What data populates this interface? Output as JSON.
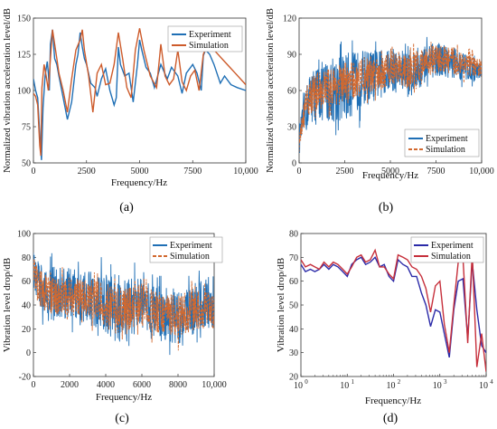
{
  "panels": [
    {
      "id": "a",
      "caption": "(a)",
      "xlabel": "Frequency/Hz",
      "ylabel": "Normalized vibration acceleration level/dB",
      "legend": [
        "Experiment",
        "Simulation"
      ]
    },
    {
      "id": "b",
      "caption": "(b)",
      "xlabel": "Frequency/Hz",
      "ylabel": "Normalized vibration acceleration level/dB",
      "legend": [
        "Experiment",
        "Simulation"
      ]
    },
    {
      "id": "c",
      "caption": "(c)",
      "xlabel": "Frequency/Hz",
      "ylabel": "Vibration level drop/dB",
      "legend": [
        "Experiment",
        "Simulation"
      ]
    },
    {
      "id": "d",
      "caption": "(d)",
      "xlabel": "Frequency/Hz",
      "ylabel": "Vibration level drop/dB",
      "legend": [
        "Experiment",
        "Simulation"
      ]
    }
  ],
  "colors": {
    "a_exp": "#1f6fb5",
    "a_sim": "#cd5b2b",
    "b_exp": "#1f6fb5",
    "b_sim": "#d2692f",
    "c_exp": "#1f6fb5",
    "c_sim": "#d2692f",
    "d_exp": "#2b2aa8",
    "d_sim": "#c62f3b"
  },
  "chart_data": [
    {
      "panel": "a",
      "type": "line",
      "xlim": [
        0,
        10000
      ],
      "ylim": [
        50,
        150
      ],
      "xticks": [
        0,
        2500,
        5000,
        7500,
        10000
      ],
      "xtick_labels": [
        "0",
        "2500",
        "5000",
        "7500",
        "10,000"
      ],
      "yticks": [
        50,
        75,
        100,
        125,
        150
      ],
      "legend_position": "top-right",
      "series": [
        {
          "name": "Experiment",
          "style": "solid",
          "x": [
            0,
            100,
            200,
            300,
            380,
            450,
            550,
            650,
            700,
            750,
            800,
            900,
            1000,
            1100,
            1200,
            1400,
            1600,
            1800,
            2000,
            2100,
            2200,
            2300,
            2400,
            2500,
            2700,
            2900,
            3000,
            3200,
            3400,
            3600,
            3800,
            3900,
            4000,
            4100,
            4300,
            4500,
            4700,
            4900,
            5000,
            5100,
            5300,
            5500,
            5700,
            6000,
            6300,
            6500,
            6800,
            7000,
            7200,
            7500,
            7700,
            7900,
            8000,
            8100,
            8300,
            8500,
            8800,
            9000,
            9300,
            9600,
            10000
          ],
          "y": [
            108,
            100,
            95,
            70,
            52,
            88,
            110,
            120,
            112,
            100,
            132,
            142,
            122,
            118,
            110,
            95,
            80,
            92,
            118,
            125,
            140,
            130,
            122,
            118,
            105,
            102,
            96,
            108,
            115,
            100,
            90,
            95,
            130,
            118,
            110,
            112,
            92,
            118,
            135,
            128,
            116,
            112,
            102,
            118,
            108,
            116,
            110,
            98,
            112,
            118,
            112,
            100,
            124,
            128,
            125,
            118,
            105,
            110,
            104,
            102,
            100
          ]
        },
        {
          "name": "Simulation",
          "style": "solid",
          "x": [
            0,
            100,
            200,
            300,
            350,
            400,
            500,
            600,
            700,
            800,
            900,
            1000,
            1100,
            1200,
            1400,
            1600,
            1800,
            2000,
            2200,
            2300,
            2400,
            2600,
            2800,
            3000,
            3200,
            3400,
            3600,
            3800,
            4000,
            4200,
            4400,
            4600,
            4800,
            5000,
            5200,
            5500,
            5800,
            6000,
            6200,
            6400,
            6600,
            6800,
            7000,
            7200,
            7400,
            7600,
            7800,
            8000,
            8200,
            8500,
            9000,
            9500,
            10000
          ],
          "y": [
            98,
            96,
            90,
            62,
            55,
            102,
            118,
            110,
            100,
            122,
            142,
            132,
            122,
            112,
            100,
            85,
            108,
            128,
            135,
            142,
            128,
            110,
            85,
            112,
            118,
            104,
            105,
            118,
            140,
            122,
            102,
            95,
            128,
            143,
            128,
            110,
            102,
            132,
            110,
            104,
            108,
            128,
            106,
            100,
            110,
            114,
            100,
            125,
            132,
            128,
            120,
            112,
            104
          ]
        }
      ]
    },
    {
      "panel": "b",
      "type": "line",
      "xlim": [
        0,
        10000
      ],
      "ylim": [
        0,
        120
      ],
      "xticks": [
        0,
        2500,
        5000,
        7500,
        10000
      ],
      "xtick_labels": [
        "0",
        "2500",
        "5000",
        "7500",
        "10,000"
      ],
      "yticks": [
        0,
        30,
        60,
        90,
        120
      ],
      "legend_position": "bottom-right",
      "series": [
        {
          "name": "Experiment",
          "style": "solid",
          "noisy": true,
          "x": [
            0,
            200,
            400,
            600,
            1000,
            1500,
            2000,
            2500,
            3000,
            3500,
            4000,
            4500,
            5000,
            5500,
            6000,
            6500,
            7000,
            7500,
            8000,
            8500,
            9000,
            9500,
            10000
          ],
          "y": [
            20,
            35,
            45,
            55,
            58,
            60,
            62,
            62,
            66,
            70,
            72,
            74,
            76,
            76,
            74,
            78,
            82,
            86,
            85,
            82,
            80,
            78,
            76
          ],
          "amplitude": [
            8,
            14,
            20,
            22,
            24,
            26,
            28,
            30,
            26,
            24,
            22,
            20,
            18,
            18,
            20,
            18,
            16,
            14,
            14,
            14,
            12,
            10,
            8
          ]
        },
        {
          "name": "Simulation",
          "style": "dashed",
          "noisy": true,
          "x": [
            0,
            200,
            400,
            600,
            1000,
            1500,
            2000,
            2500,
            3000,
            3500,
            4000,
            4500,
            5000,
            5500,
            6000,
            6500,
            7000,
            7500,
            8000,
            8500,
            9000,
            9500,
            10000
          ],
          "y": [
            15,
            35,
            48,
            56,
            60,
            62,
            64,
            66,
            68,
            72,
            74,
            76,
            78,
            77,
            76,
            80,
            84,
            86,
            86,
            84,
            82,
            80,
            78
          ],
          "amplitude": [
            6,
            10,
            14,
            16,
            16,
            16,
            16,
            18,
            16,
            16,
            16,
            15,
            14,
            14,
            14,
            14,
            12,
            12,
            12,
            12,
            10,
            10,
            8
          ]
        }
      ]
    },
    {
      "panel": "c",
      "type": "line",
      "xlim": [
        0,
        10000
      ],
      "ylim": [
        -20,
        100
      ],
      "xticks": [
        0,
        2000,
        4000,
        6000,
        8000,
        10000
      ],
      "xtick_labels": [
        "0",
        "2000",
        "4000",
        "6000",
        "8000",
        "10,000"
      ],
      "yticks": [
        -20,
        0,
        20,
        40,
        60,
        80,
        100
      ],
      "legend_position": "top-right",
      "series": [
        {
          "name": "Experiment",
          "style": "solid",
          "noisy": true,
          "x": [
            0,
            200,
            500,
            1000,
            1500,
            2000,
            2500,
            3000,
            3500,
            4000,
            4500,
            5000,
            5500,
            6000,
            6500,
            7000,
            7500,
            8000,
            8500,
            9000,
            9500,
            10000
          ],
          "y": [
            70,
            60,
            55,
            50,
            50,
            50,
            48,
            46,
            44,
            40,
            36,
            32,
            38,
            40,
            36,
            34,
            32,
            30,
            34,
            38,
            40,
            38
          ],
          "amplitude": [
            14,
            18,
            20,
            22,
            22,
            22,
            22,
            22,
            24,
            26,
            26,
            26,
            24,
            22,
            22,
            22,
            22,
            24,
            22,
            22,
            20,
            18
          ]
        },
        {
          "name": "Simulation",
          "style": "dashed",
          "noisy": true,
          "x": [
            0,
            200,
            500,
            1000,
            1500,
            2000,
            2500,
            3000,
            3500,
            4000,
            4500,
            5000,
            5500,
            6000,
            6500,
            7000,
            7500,
            8000,
            8500,
            9000,
            9500,
            10000
          ],
          "y": [
            72,
            58,
            52,
            48,
            48,
            48,
            46,
            45,
            44,
            40,
            36,
            34,
            38,
            40,
            36,
            34,
            32,
            30,
            34,
            36,
            36,
            34
          ],
          "amplitude": [
            10,
            14,
            16,
            16,
            16,
            16,
            16,
            16,
            18,
            20,
            20,
            20,
            18,
            18,
            18,
            18,
            18,
            18,
            18,
            16,
            16,
            14
          ]
        }
      ]
    },
    {
      "panel": "d",
      "type": "line",
      "xscale": "log",
      "xlim": [
        1,
        10000
      ],
      "ylim": [
        20,
        80
      ],
      "xticks": [
        1,
        10,
        100,
        1000,
        10000
      ],
      "xtick_labels": [
        "10^0",
        "10^1",
        "10^2",
        "10^3",
        "10^4"
      ],
      "yticks": [
        20,
        30,
        40,
        50,
        60,
        70,
        80
      ],
      "legend_position": "top-right",
      "series": [
        {
          "name": "Experiment",
          "style": "solid",
          "x": [
            1,
            1.25,
            1.6,
            2,
            2.5,
            3.15,
            4,
            5,
            6.3,
            8,
            10,
            12.5,
            16,
            20,
            25,
            31.5,
            40,
            50,
            63,
            80,
            100,
            125,
            160,
            200,
            250,
            315,
            400,
            500,
            630,
            800,
            1000,
            1250,
            1600,
            2000,
            2500,
            3150,
            4000,
            5000,
            6300,
            8000,
            10000
          ],
          "y": [
            67,
            64,
            65,
            64,
            65,
            67,
            65,
            67,
            66,
            64,
            62,
            67,
            69,
            70,
            67,
            68,
            70,
            66,
            67,
            62,
            60,
            69,
            67,
            66,
            62,
            62,
            55,
            50,
            41,
            48,
            47,
            38,
            28,
            48,
            60,
            61,
            36,
            68,
            48,
            33,
            30
          ]
        },
        {
          "name": "Simulation",
          "style": "solid",
          "x": [
            1,
            1.25,
            1.6,
            2,
            2.5,
            3.15,
            4,
            5,
            6.3,
            8,
            10,
            12.5,
            16,
            20,
            25,
            31.5,
            40,
            50,
            63,
            80,
            100,
            125,
            160,
            200,
            250,
            315,
            400,
            500,
            630,
            800,
            1000,
            1250,
            1600,
            2000,
            2500,
            3150,
            4000,
            5000,
            6300,
            8000,
            10000
          ],
          "y": [
            69,
            66,
            67,
            66,
            65,
            68,
            66,
            68,
            67,
            65,
            63,
            66,
            70,
            71,
            68,
            69,
            73,
            66,
            66,
            63,
            61,
            71,
            70,
            69,
            66,
            65,
            62,
            57,
            47,
            58,
            60,
            42,
            30,
            50,
            68,
            70,
            34,
            72,
            24,
            38,
            22
          ]
        }
      ]
    }
  ]
}
